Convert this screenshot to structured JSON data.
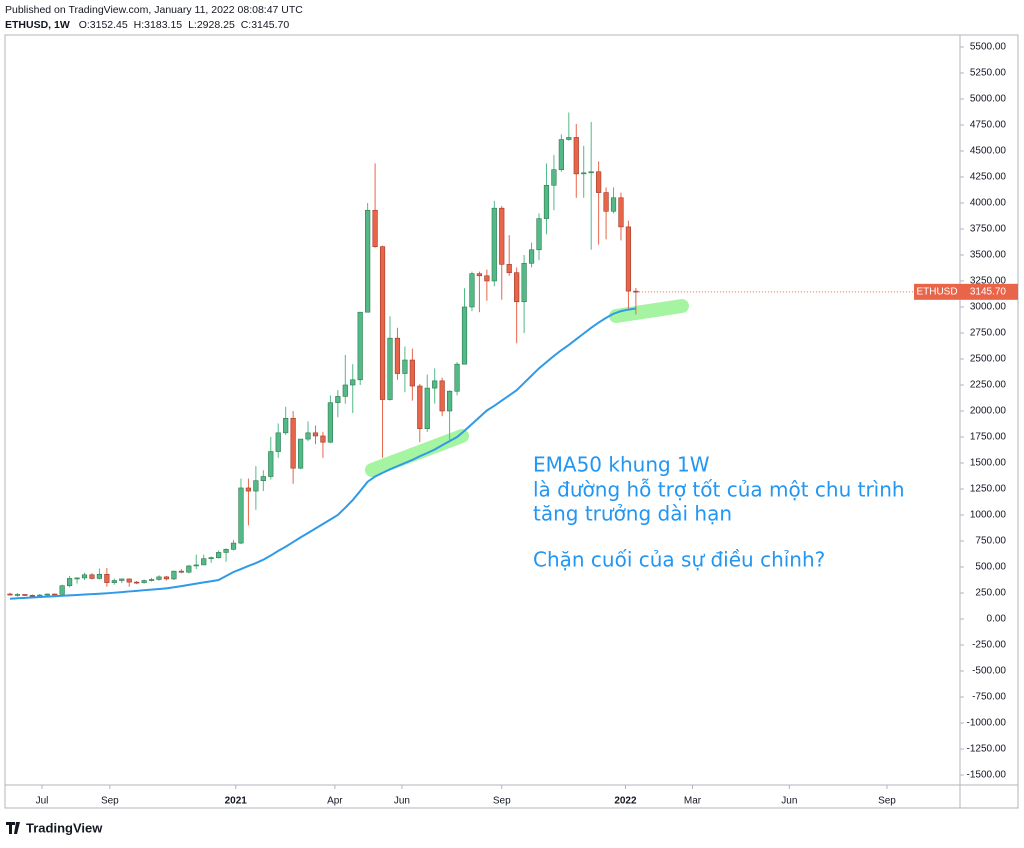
{
  "header": {
    "published": "Published on TradingView.com, January 11, 2022 08:08:47 UTC",
    "title": "ETHUSD, 1W",
    "ohlc_labels": [
      "O:",
      "H:",
      "L:",
      "C:"
    ],
    "ohlc_text": [
      "3152.45",
      "3183.15",
      "2928.25",
      "3145.70"
    ]
  },
  "chart_data": {
    "type": "candlestick",
    "up_color": "#53b987",
    "down_color": "#e8654a",
    "ema_color": "#2f9ae8",
    "ohlc": [
      [
        240,
        253,
        225,
        232
      ],
      [
        232,
        250,
        215,
        236
      ],
      [
        236,
        240,
        222,
        228
      ],
      [
        228,
        236,
        215,
        225
      ],
      [
        225,
        240,
        220,
        230
      ],
      [
        230,
        245,
        225,
        240
      ],
      [
        240,
        245,
        230,
        238
      ],
      [
        238,
        330,
        236,
        320
      ],
      [
        320,
        415,
        305,
        390
      ],
      [
        390,
        400,
        340,
        395
      ],
      [
        395,
        445,
        375,
        425
      ],
      [
        425,
        440,
        380,
        390
      ],
      [
        390,
        485,
        380,
        430
      ],
      [
        430,
        490,
        310,
        350
      ],
      [
        350,
        390,
        330,
        370
      ],
      [
        370,
        390,
        345,
        385
      ],
      [
        385,
        390,
        310,
        355
      ],
      [
        355,
        365,
        335,
        350
      ],
      [
        350,
        380,
        340,
        370
      ],
      [
        370,
        395,
        360,
        380
      ],
      [
        380,
        420,
        370,
        405
      ],
      [
        405,
        415,
        370,
        385
      ],
      [
        385,
        465,
        375,
        460
      ],
      [
        460,
        480,
        440,
        450
      ],
      [
        450,
        520,
        440,
        510
      ],
      [
        510,
        620,
        480,
        520
      ],
      [
        520,
        620,
        520,
        580
      ],
      [
        580,
        600,
        540,
        590
      ],
      [
        590,
        660,
        580,
        640
      ],
      [
        640,
        680,
        550,
        670
      ],
      [
        670,
        760,
        660,
        730
      ],
      [
        730,
        1350,
        720,
        1260
      ],
      [
        1260,
        1350,
        900,
        1230
      ],
      [
        1230,
        1470,
        1050,
        1330
      ],
      [
        1330,
        1430,
        1230,
        1370
      ],
      [
        1370,
        1750,
        1340,
        1610
      ],
      [
        1610,
        1880,
        1550,
        1790
      ],
      [
        1790,
        2040,
        1770,
        1930
      ],
      [
        1930,
        2000,
        1300,
        1450
      ],
      [
        1450,
        1730,
        1440,
        1730
      ],
      [
        1730,
        1900,
        1710,
        1790
      ],
      [
        1790,
        1860,
        1680,
        1760
      ],
      [
        1760,
        1800,
        1550,
        1700
      ],
      [
        1700,
        2150,
        1690,
        2080
      ],
      [
        2080,
        2200,
        1940,
        2140
      ],
      [
        2140,
        2540,
        2070,
        2250
      ],
      [
        2250,
        2450,
        1980,
        2300
      ],
      [
        2300,
        2950,
        2250,
        2950
      ],
      [
        2950,
        4000,
        2950,
        3930
      ],
      [
        3930,
        4380,
        3570,
        3580
      ],
      [
        3580,
        3590,
        1550,
        2110
      ],
      [
        2110,
        2910,
        2100,
        2700
      ],
      [
        2700,
        2800,
        2300,
        2360
      ],
      [
        2360,
        2620,
        2180,
        2490
      ],
      [
        2490,
        2600,
        2100,
        2240
      ],
      [
        2240,
        2260,
        1700,
        1830
      ],
      [
        1830,
        2350,
        1800,
        2220
      ],
      [
        2220,
        2410,
        2070,
        2290
      ],
      [
        2290,
        2320,
        1950,
        2000
      ],
      [
        2000,
        2200,
        1720,
        2190
      ],
      [
        2190,
        2470,
        2150,
        2450
      ],
      [
        2450,
        3180,
        2450,
        3000
      ],
      [
        3000,
        3340,
        2960,
        3320
      ],
      [
        3320,
        3340,
        2950,
        3300
      ],
      [
        3300,
        3360,
        3060,
        3250
      ],
      [
        3250,
        4020,
        3200,
        3950
      ],
      [
        3950,
        3970,
        3070,
        3410
      ],
      [
        3410,
        3690,
        3300,
        3330
      ],
      [
        3330,
        3380,
        2650,
        3050
      ],
      [
        3050,
        3500,
        2750,
        3420
      ],
      [
        3420,
        3620,
        3380,
        3550
      ],
      [
        3550,
        3900,
        3450,
        3850
      ],
      [
        3850,
        4380,
        3700,
        4170
      ],
      [
        4170,
        4460,
        3930,
        4320
      ],
      [
        4320,
        4660,
        4300,
        4610
      ],
      [
        4610,
        4870,
        4600,
        4630
      ],
      [
        4630,
        4760,
        4050,
        4280
      ],
      [
        4280,
        4550,
        4050,
        4290
      ],
      [
        4290,
        4780,
        3550,
        4300
      ],
      [
        4300,
        4400,
        3600,
        4100
      ],
      [
        4100,
        4150,
        3650,
        3920
      ],
      [
        3920,
        4150,
        3900,
        4050
      ],
      [
        4050,
        4100,
        3640,
        3770
      ],
      [
        3770,
        3830,
        2980,
        3152.45
      ],
      [
        3152.45,
        3183.15,
        2928.25,
        3145.7
      ]
    ],
    "ema": [
      195,
      199,
      203,
      207,
      211,
      215,
      219,
      223,
      227,
      231,
      235,
      239,
      243,
      247,
      253,
      259,
      265,
      271,
      277,
      283,
      289,
      295,
      305,
      316,
      328,
      340,
      352,
      363,
      375,
      413,
      452,
      480,
      510,
      538,
      570,
      610,
      655,
      695,
      740,
      785,
      827,
      870,
      913,
      957,
      1000,
      1070,
      1144,
      1230,
      1320,
      1370,
      1405,
      1440,
      1470,
      1500,
      1530,
      1565,
      1596,
      1630,
      1670,
      1710,
      1750,
      1810,
      1875,
      1940,
      2005,
      2050,
      2100,
      2150,
      2200,
      2270,
      2340,
      2410,
      2470,
      2530,
      2585,
      2635,
      2690,
      2745,
      2800,
      2850,
      2895,
      2935,
      2960,
      2975,
      2985
    ],
    "price_tag_symbol": "ETHUSD",
    "last_price_label": "3145.70",
    "xlim": [
      -0.67,
      127.5
    ],
    "xticks": [
      {
        "value": 4.3,
        "label": "Jul"
      },
      {
        "value": 13.4,
        "label": "Sep"
      },
      {
        "value": 30.3,
        "label": "2021"
      },
      {
        "value": 43.6,
        "label": "Apr"
      },
      {
        "value": 52.6,
        "label": "Jun"
      },
      {
        "value": 66,
        "label": "Sep"
      },
      {
        "value": 82.6,
        "label": "2022"
      },
      {
        "value": 91.6,
        "label": "Mar"
      },
      {
        "value": 104.6,
        "label": "Jun"
      },
      {
        "value": 117.7,
        "label": "Sep"
      }
    ],
    "ylim": [
      -1596,
      5615
    ],
    "yticks": [
      {
        "value": 5500,
        "label": "5500.00"
      },
      {
        "value": 5250,
        "label": "5250.00"
      },
      {
        "value": 5000,
        "label": "5000.00"
      },
      {
        "value": 4750,
        "label": "4750.00"
      },
      {
        "value": 4500,
        "label": "4500.00"
      },
      {
        "value": 4250,
        "label": "4250.00"
      },
      {
        "value": 4000,
        "label": "4000.00"
      },
      {
        "value": 3750,
        "label": "3750.00"
      },
      {
        "value": 3500,
        "label": "3500.00"
      },
      {
        "value": 3250,
        "label": "3250.00"
      },
      {
        "value": 3000,
        "label": "3000.00"
      },
      {
        "value": 2750,
        "label": "2750.00"
      },
      {
        "value": 2500,
        "label": "2500.00"
      },
      {
        "value": 2250,
        "label": "2250.00"
      },
      {
        "value": 2000,
        "label": "2000.00"
      },
      {
        "value": 1750,
        "label": "1750.00"
      },
      {
        "value": 1500,
        "label": "1500.00"
      },
      {
        "value": 1250,
        "label": "1250.00"
      },
      {
        "value": 1000,
        "label": "1000.00"
      },
      {
        "value": 750,
        "label": "750.00"
      },
      {
        "value": 500,
        "label": "500.00"
      },
      {
        "value": 250,
        "label": "250.00"
      },
      {
        "value": 0,
        "label": "0.00"
      },
      {
        "value": -250,
        "label": "-250.00"
      },
      {
        "value": -500,
        "label": "-500.00"
      },
      {
        "value": -750,
        "label": "-750.00"
      },
      {
        "value": -1000,
        "label": "-1000.00"
      },
      {
        "value": -1250,
        "label": "-1250.00"
      },
      {
        "value": -1500,
        "label": "-1500.00"
      }
    ],
    "annotations": [
      "EMA50 khung 1W",
      "là đường hỗ trợ tốt của một chu trình",
      "tăng trưởng dài hạn",
      "Chặn cuối của sự điều chỉnh?"
    ]
  },
  "footer": {
    "logo": "TradingView"
  }
}
